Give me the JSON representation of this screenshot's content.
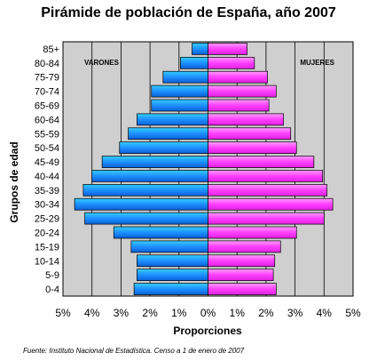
{
  "chart_data": {
    "type": "bar",
    "orientation": "horizontal-population-pyramid",
    "title": "Pirámide de población de España, año 2007",
    "xlabel": "Proporciones",
    "ylabel": "Grupos de edad",
    "xlim": [
      -5,
      5
    ],
    "x_ticks": [
      "5%",
      "4%",
      "3%",
      "2%",
      "1%",
      "0%",
      "1%",
      "2%",
      "3%",
      "4%",
      "5%"
    ],
    "categories": [
      "85+",
      "80-84",
      "75-79",
      "70-74",
      "65-69",
      "60-64",
      "55-59",
      "50-54",
      "45-49",
      "40-44",
      "35-39",
      "30-34",
      "25-29",
      "20-24",
      "15-19",
      "10-14",
      "5-9",
      "0-4"
    ],
    "series": [
      {
        "name": "VARONES",
        "color": "#1e90ff",
        "values": [
          0.55,
          0.95,
          1.55,
          1.95,
          1.95,
          2.45,
          2.75,
          3.05,
          3.65,
          4.0,
          4.3,
          4.6,
          4.25,
          3.25,
          2.65,
          2.45,
          2.45,
          2.55
        ]
      },
      {
        "name": "MUJERES",
        "color": "#ff40ff",
        "values": [
          1.35,
          1.6,
          2.05,
          2.35,
          2.1,
          2.6,
          2.85,
          3.05,
          3.65,
          3.95,
          4.1,
          4.3,
          4.0,
          3.05,
          2.5,
          2.3,
          2.25,
          2.35
        ]
      }
    ],
    "grid": true
  },
  "source": "Fuente: Instituto Nacional de Estadística. Censo a 1 de enero de 2007"
}
